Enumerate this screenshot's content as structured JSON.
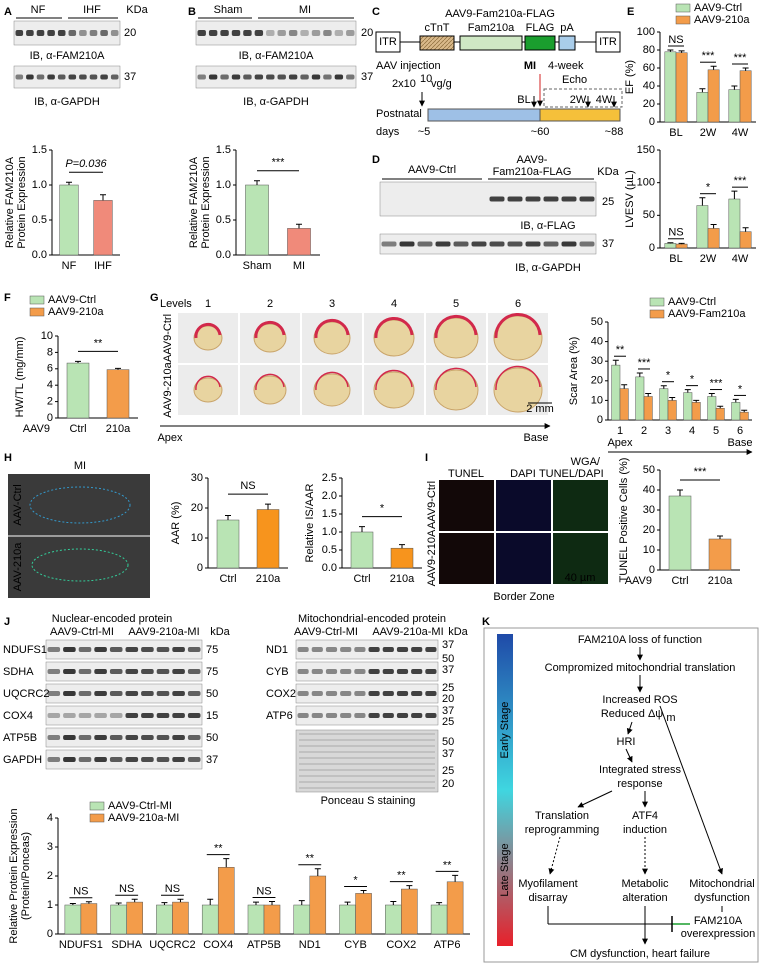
{
  "figure": {
    "panels": [
      "A",
      "B",
      "C",
      "D",
      "E",
      "F",
      "G",
      "H",
      "I",
      "J",
      "K"
    ],
    "A": {
      "lanes": [
        "NF",
        "IHF"
      ],
      "kda": "KDa",
      "markers": [
        "20",
        "37"
      ],
      "blots": [
        "IB, α-FAM210A",
        "IB, α-GAPDH"
      ]
    },
    "B": {
      "lanes": [
        "Sham",
        "MI"
      ],
      "markers": [
        "20",
        "37"
      ],
      "blots": [
        "IB, α-FAM210A",
        "IB, α-GAPDH"
      ]
    },
    "C": {
      "title": "AAV9-Fam210a-FLAG",
      "elements": [
        "ITR",
        "cTnT",
        "Fam210a",
        "FLAG",
        "pA",
        "ITR"
      ],
      "injection": "AAV injection",
      "dose": "2x10",
      "dose_exp": "10",
      "dose_unit": "vg/g",
      "mi": "MI",
      "echo": [
        "4-week",
        "Echo"
      ],
      "timeline": [
        "Postnatal",
        "days"
      ],
      "days": [
        "~5",
        "~60",
        "~88"
      ],
      "echo_points": [
        "BL",
        "2W",
        "4W"
      ]
    },
    "D": {
      "groups": [
        "AAV9-Ctrl",
        "AAV9-",
        "Fam210a-FLAG"
      ],
      "kda": "KDa",
      "markers": [
        "25",
        "37"
      ],
      "blots": [
        "IB, α-FLAG",
        "IB, α-GAPDH"
      ]
    },
    "G": {
      "levels_label": "Levels",
      "levels": [
        "1",
        "2",
        "3",
        "4",
        "5",
        "6"
      ],
      "rows": [
        "AAV9-Ctrl",
        "AAV9-210a"
      ],
      "scale": "2 mm",
      "axis": [
        "Apex",
        "Base"
      ]
    },
    "H": {
      "title": "MI",
      "rows": [
        "AAV-Ctrl",
        "AAV-210a"
      ]
    },
    "I": {
      "columns": [
        "TUNEL",
        "DAPI"
      ],
      "merge": [
        "WGA/",
        "TUNEL",
        "/DAPI"
      ],
      "rows": [
        "AAV9-Ctrl",
        "AAV9-210A"
      ],
      "footer": "Border Zone",
      "scale": "40 µm"
    },
    "J": {
      "left": {
        "title": "Nuclear-encoded protein",
        "groups": [
          "AAV9-Ctrl-MI",
          "AAV9-210a-MI"
        ],
        "kda": "kDa",
        "proteins": [
          "NDUFS1",
          "SDHA",
          "UQCRC2",
          "COX4",
          "ATP5B",
          "GAPDH"
        ],
        "markers": [
          "75",
          "75",
          "50",
          "15",
          "50",
          "37"
        ]
      },
      "right": {
        "title": "Mitochondrial-encoded protein",
        "groups": [
          "AAV9-Ctrl-MI",
          "AAV9-210a-MI"
        ],
        "kda": "kDa",
        "proteins": [
          "ND1",
          "CYB",
          "COX2",
          "ATP6"
        ],
        "markers": [
          "37",
          "50",
          "37",
          "25",
          "20",
          "37",
          "25",
          "50",
          "37",
          "25",
          "20"
        ],
        "stain": "Ponceau S staining"
      }
    },
    "K": {
      "stages": [
        "Early Stage",
        "Late Stage"
      ],
      "loss": "FAM210A loss of function",
      "translation": "Compromized mitochondrial translation",
      "ros": "Increased ROS",
      "reduced": "Reduced Δψ",
      "reduced_sub": "m",
      "hri": "HRI",
      "isr": [
        "Integrated stress",
        "response"
      ],
      "reprogramming": [
        "Translation",
        "reprogramming"
      ],
      "atf4": [
        "ATF4",
        "induction"
      ],
      "myofilament": [
        "Myofilament",
        "disarray"
      ],
      "metabolic": [
        "Metabolic",
        "alteration"
      ],
      "mito": [
        "Mitochondrial",
        "dysfunction"
      ],
      "over": [
        "FAM210A",
        "overexpression"
      ],
      "outcome": "CM dysfunction, heart failure"
    }
  },
  "chart_data": [
    {
      "type": "bar",
      "ylabel": [
        "Relative FAM210A",
        "Protein Expression"
      ],
      "categories": [
        "NF",
        "IHF"
      ],
      "values": [
        1.0,
        0.78
      ],
      "errors": [
        0.04,
        0.08
      ],
      "colors": [
        "#b9e4b4",
        "#f08a7a"
      ],
      "ylim": [
        0,
        1.5
      ],
      "yticks": [
        {
          "value": 0,
          "label": "0.0"
        },
        0.5,
        {
          "value": 1,
          "label": "1.0"
        },
        1.5
      ],
      "annotation": "P=0.036"
    },
    {
      "type": "bar",
      "ylabel": [
        "Relative FAM210A",
        "Protein Expression"
      ],
      "categories": [
        "Sham",
        "MI"
      ],
      "values": [
        1.0,
        0.38
      ],
      "errors": [
        0.06,
        0.06
      ],
      "colors": [
        "#b9e4b4",
        "#f08a7a"
      ],
      "ylim": [
        0,
        1.5
      ],
      "yticks": [
        {
          "value": 0,
          "label": "0.0"
        },
        0.5,
        {
          "value": 1,
          "label": "1.0"
        },
        1.5
      ],
      "annotation": "***"
    },
    {
      "type": "bar",
      "ylabel": [
        "EF (%)"
      ],
      "categories": [
        "BL",
        "2W",
        "4W"
      ],
      "series": [
        {
          "name": "AAV9-Ctrl",
          "color": "#b9e4b4",
          "values": [
            78,
            33,
            36
          ],
          "errors": [
            2,
            4,
            4
          ]
        },
        {
          "name": "AAV9-210a",
          "color": "#f39c4a",
          "values": [
            77,
            58,
            57
          ],
          "errors": [
            2,
            4,
            3
          ]
        }
      ],
      "ylim": [
        0,
        100
      ],
      "yticks": [
        0,
        20,
        40,
        60,
        80,
        100
      ],
      "annotations": [
        "NS",
        "***",
        "***"
      ]
    },
    {
      "type": "bar",
      "ylabel": [
        "LVESV (µL)"
      ],
      "categories": [
        "BL",
        "2W",
        "4W"
      ],
      "series": [
        {
          "name": "AAV9-Ctrl",
          "color": "#b9e4b4",
          "values": [
            7,
            65,
            75
          ],
          "errors": [
            1,
            12,
            12
          ]
        },
        {
          "name": "AAV9-210a",
          "color": "#f39c4a",
          "values": [
            6,
            30,
            25
          ],
          "errors": [
            1,
            6,
            6
          ]
        }
      ],
      "ylim": [
        0,
        150
      ],
      "yticks": [
        0,
        50,
        100,
        150
      ],
      "annotations": [
        "NS",
        "*",
        "***"
      ]
    },
    {
      "type": "bar",
      "ylabel": [
        "HW/TL (mg/mm)"
      ],
      "categories": [
        "Ctrl",
        "210a"
      ],
      "xprefix": "AAV9",
      "legend": [
        "AAV9-Ctrl",
        "AAV9-210a"
      ],
      "values": [
        6.7,
        5.9
      ],
      "errors": [
        0.2,
        0.15
      ],
      "colors": [
        "#b9e4b4",
        "#f39c4a"
      ],
      "ylim": [
        0,
        10
      ],
      "yticks": [
        0,
        2,
        4,
        6,
        8,
        10
      ],
      "annotation": "**"
    },
    {
      "type": "bar",
      "ylabel": [
        "Scar Area (%)"
      ],
      "categories": [
        "1",
        "2",
        "3",
        "4",
        "5",
        "6"
      ],
      "xnotes": [
        "Apex",
        "Base"
      ],
      "series": [
        {
          "name": "AAV9-Ctrl",
          "color": "#b9e4b4",
          "values": [
            28,
            22,
            16,
            14,
            12,
            9
          ],
          "errors": [
            2.5,
            2,
            1.5,
            1.5,
            1.5,
            1.5
          ]
        },
        {
          "name": "AAV9-Fam210a",
          "color": "#f39c4a",
          "values": [
            16,
            12,
            10,
            9,
            6,
            4
          ],
          "errors": [
            2,
            1.5,
            1.5,
            1,
            1,
            1
          ]
        }
      ],
      "ylim": [
        0,
        50
      ],
      "yticks": [
        0,
        10,
        20,
        30,
        40,
        50
      ],
      "annotations": [
        "**",
        "***",
        "*",
        "*",
        "***",
        "*"
      ]
    },
    {
      "type": "bar",
      "ylabel": [
        "AAR (%)"
      ],
      "categories": [
        "Ctrl",
        "210a"
      ],
      "values": [
        16,
        19.5
      ],
      "errors": [
        1.5,
        1.8
      ],
      "colors": [
        "#b9e4b4",
        "#f7941d"
      ],
      "ylim": [
        0,
        30
      ],
      "yticks": [
        0,
        10,
        20,
        30
      ],
      "annotation": "NS"
    },
    {
      "type": "bar",
      "ylabel": [
        "Relative IS/AAR"
      ],
      "categories": [
        "Ctrl",
        "210a"
      ],
      "values": [
        1.0,
        0.55
      ],
      "errors": [
        0.15,
        0.1
      ],
      "colors": [
        "#b9e4b4",
        "#f7941d"
      ],
      "ylim": [
        0,
        2.5
      ],
      "yticks": [
        {
          "value": 0,
          "label": "0.0"
        },
        0.5,
        {
          "value": 1,
          "label": "1.0"
        },
        1.5,
        {
          "value": 2,
          "label": "2.0"
        },
        2.5
      ],
      "annotation": "*"
    },
    {
      "type": "bar",
      "ylabel": [
        "TUNEL Positive Cells (%)"
      ],
      "categories": [
        "Ctrl",
        "210a"
      ],
      "xprefix": "AAV9",
      "values": [
        37,
        15.5
      ],
      "errors": [
        3,
        1.5
      ],
      "colors": [
        "#b9e4b4",
        "#f39c4a"
      ],
      "ylim": [
        0,
        50
      ],
      "yticks": [
        0,
        10,
        20,
        30,
        40,
        50
      ],
      "annotation": "***"
    },
    {
      "type": "bar",
      "ylabel": [
        "Relative Protein Expression",
        "(Protein/Ponceas)"
      ],
      "categories": [
        "NDUFS1",
        "SDHA",
        "UQCRC2",
        "COX4",
        "ATP5B",
        "ND1",
        "CYB",
        "COX2",
        "ATP6"
      ],
      "series": [
        {
          "name": "AAV9-Ctrl-MI",
          "color": "#b9e4b4",
          "values": [
            1,
            1,
            1,
            1,
            1,
            1,
            1,
            1,
            1
          ],
          "errors": [
            0.05,
            0.07,
            0.08,
            0.2,
            0.1,
            0.15,
            0.1,
            0.12,
            0.08
          ]
        },
        {
          "name": "AAV9-210a-MI",
          "color": "#f39c4a",
          "values": [
            1.05,
            1.1,
            1.1,
            2.3,
            1.0,
            2.0,
            1.4,
            1.55,
            1.8
          ],
          "errors": [
            0.06,
            0.1,
            0.1,
            0.3,
            0.12,
            0.25,
            0.1,
            0.12,
            0.22
          ]
        }
      ],
      "ylim": [
        0,
        4
      ],
      "yticks": [
        0,
        1,
        2,
        3,
        4
      ],
      "annotations": [
        "NS",
        "NS",
        "NS",
        "**",
        "NS",
        "**",
        "*",
        "**",
        "**"
      ]
    }
  ]
}
